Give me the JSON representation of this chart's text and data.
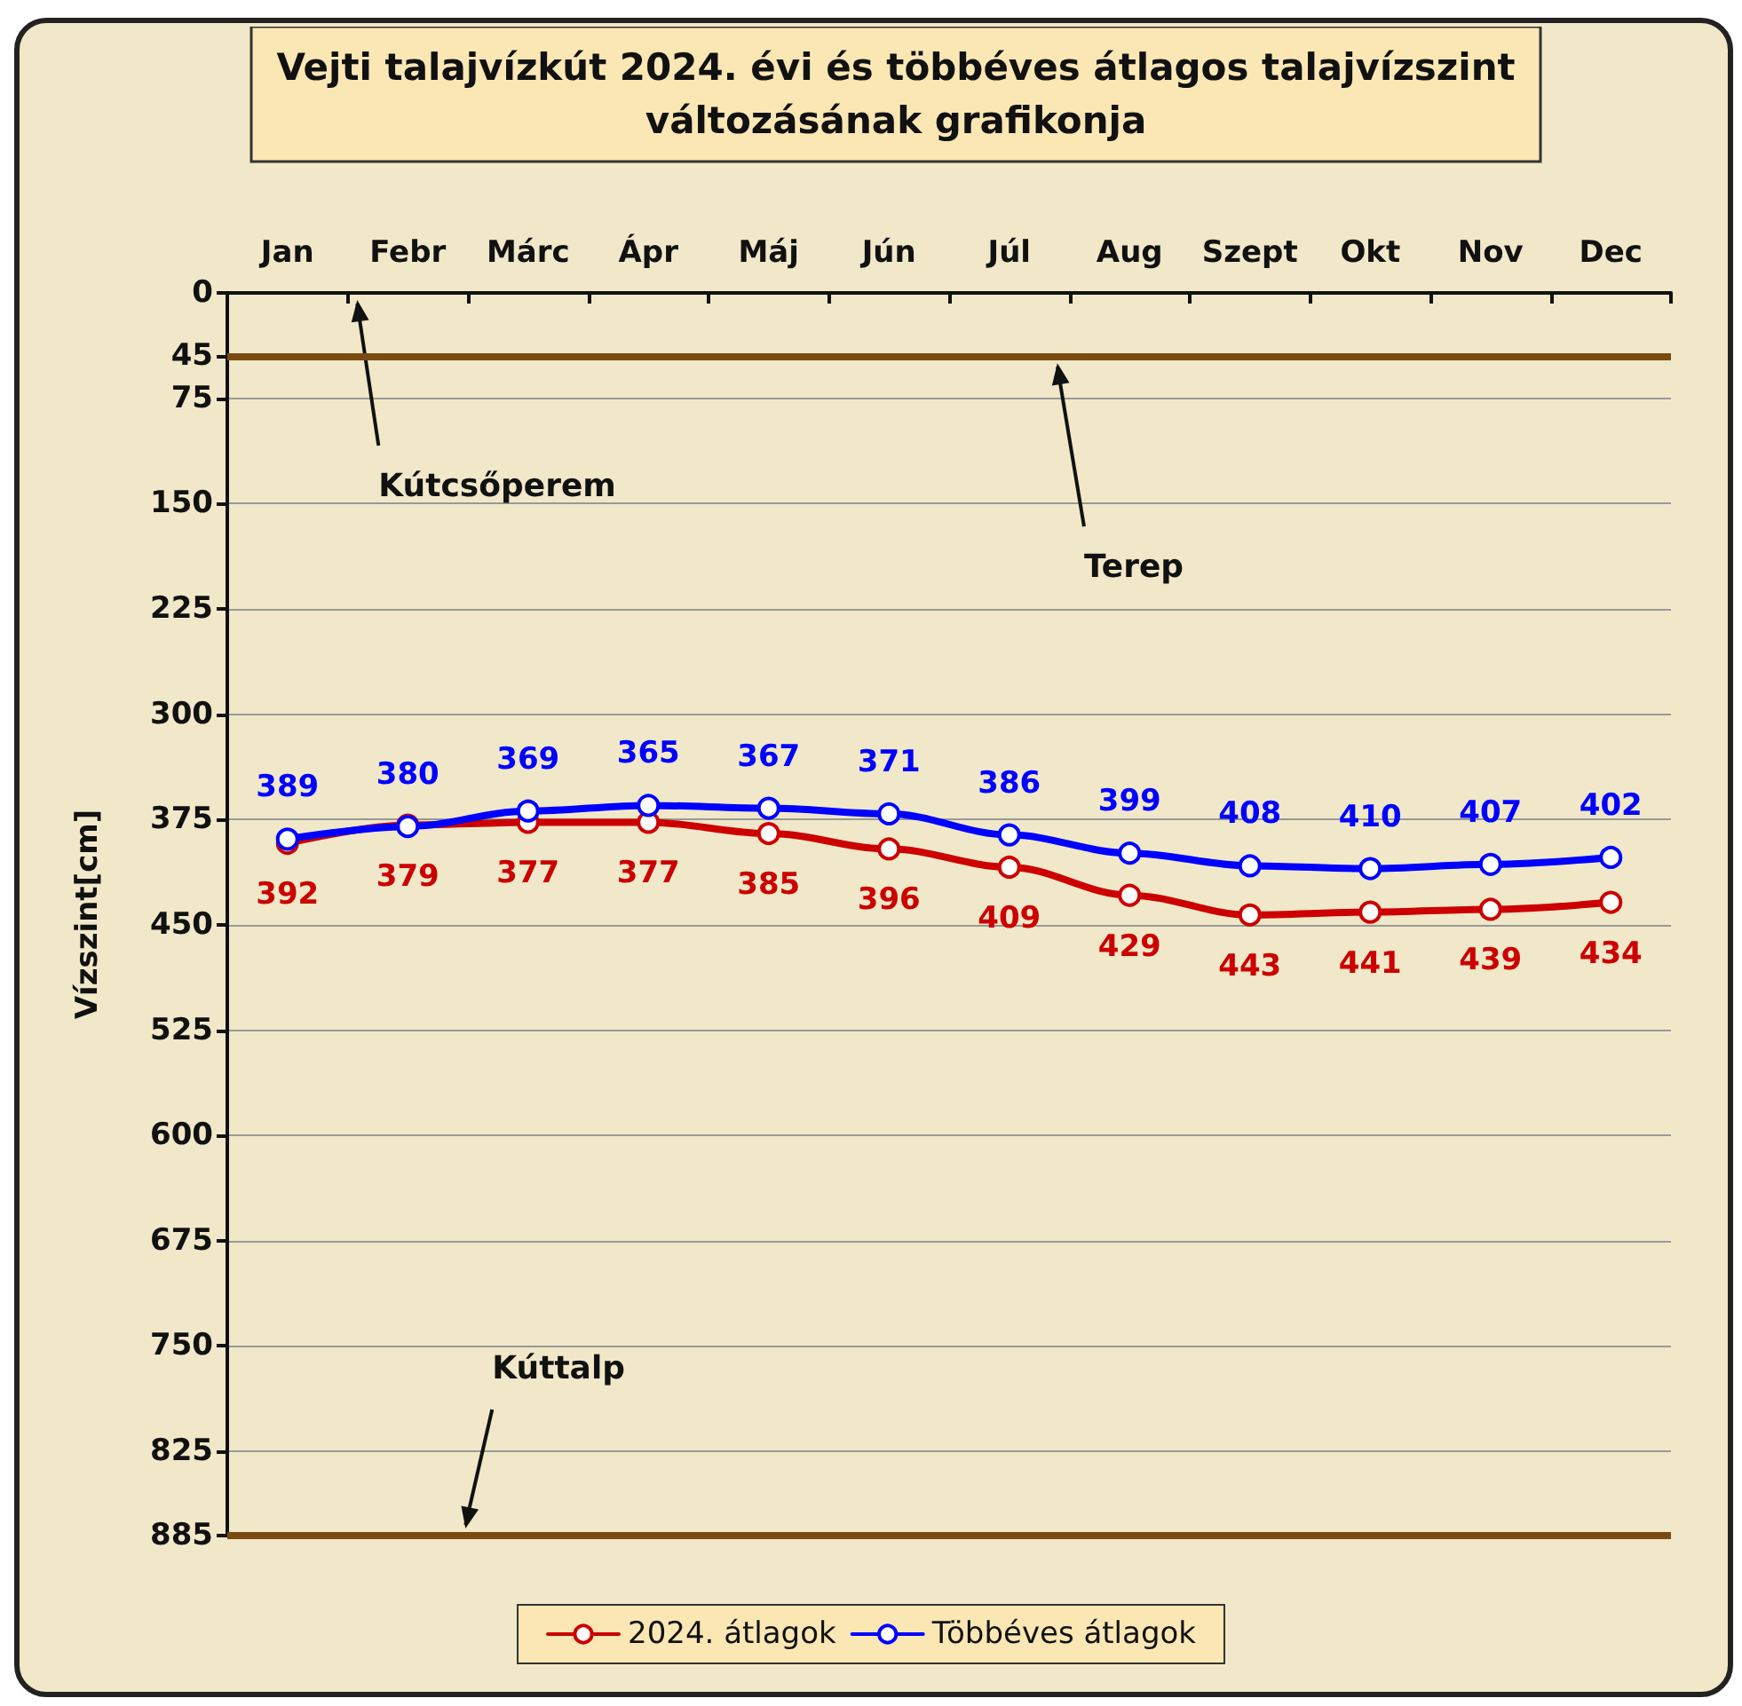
{
  "chart_data": {
    "type": "line",
    "title": "Vejti talajvízkút 2024. évi és többéves átlagos talajvízszint\nváltozásának grafikonja",
    "ylabel": "Vízszint[cm]",
    "categories": [
      "Jan",
      "Febr",
      "Márc",
      "Ápr",
      "Máj",
      "Jún",
      "Júl",
      "Aug",
      "Szept",
      "Okt",
      "Nov",
      "Dec"
    ],
    "series": [
      {
        "name": "2024. átlagok",
        "color": "#cc0000",
        "values": [
          392,
          379,
          377,
          377,
          385,
          396,
          409,
          429,
          443,
          441,
          439,
          434
        ]
      },
      {
        "name": "Többéves átlagok",
        "color": "#0000ff",
        "values": [
          389,
          380,
          369,
          365,
          367,
          371,
          386,
          399,
          408,
          410,
          407,
          402
        ]
      }
    ],
    "ylim": [
      885,
      0
    ],
    "yticks": [
      0,
      45,
      75,
      150,
      225,
      300,
      375,
      450,
      525,
      600,
      675,
      750,
      825,
      885
    ],
    "grid": "y",
    "legend": "bottom",
    "marker": "circle",
    "line_style": "solid",
    "data_labels": true,
    "ref_lines": [
      {
        "axis": "y",
        "value": 45,
        "label": "Terep",
        "color": "#7a4a10"
      },
      {
        "axis": "y",
        "value": 885,
        "label": "Kúttalp",
        "color": "#7a4a10"
      }
    ],
    "annotations": [
      "Kútcsőperem"
    ]
  }
}
